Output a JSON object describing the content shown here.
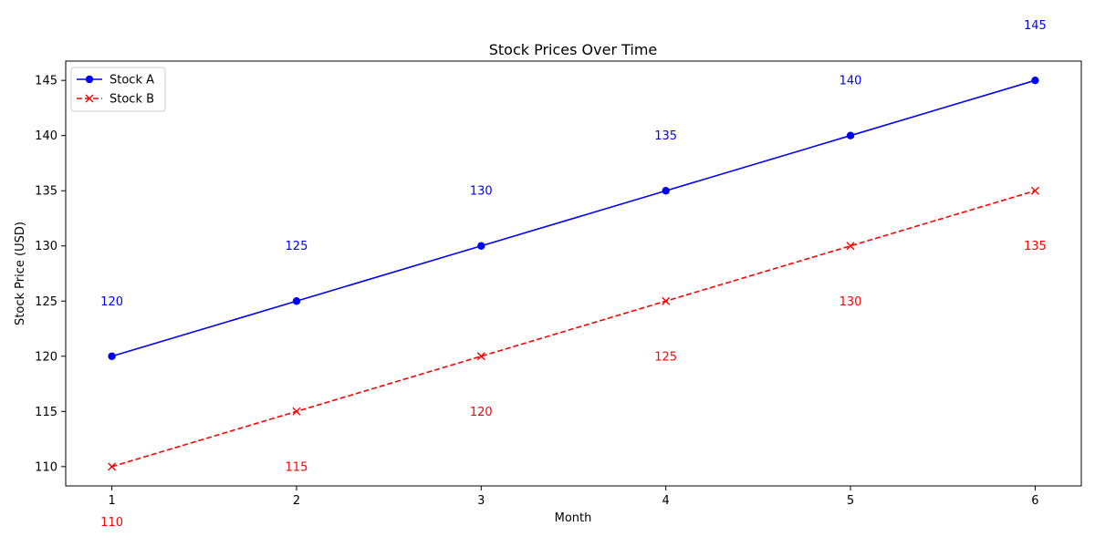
{
  "chart_data": {
    "type": "line",
    "title": "Stock Prices Over Time",
    "xlabel": "Month",
    "ylabel": "Stock Price (USD)",
    "x": [
      1,
      2,
      3,
      4,
      5,
      6
    ],
    "xlim": [
      0.75,
      6.25
    ],
    "ylim": [
      108.25,
      146.75
    ],
    "xticks": [
      1,
      2,
      3,
      4,
      5,
      6
    ],
    "yticks": [
      110,
      115,
      120,
      125,
      130,
      135,
      140,
      145
    ],
    "grid": false,
    "legend": "top-left",
    "series": [
      {
        "name": "Stock A",
        "values": [
          120,
          125,
          130,
          135,
          140,
          145
        ],
        "color": "#0000ff",
        "marker": "circle",
        "line_style": "solid",
        "label_position": "above"
      },
      {
        "name": "Stock B",
        "values": [
          110,
          115,
          120,
          125,
          130,
          135
        ],
        "color": "#ff0000",
        "marker": "x",
        "line_style": "dashed",
        "label_position": "below"
      }
    ]
  }
}
